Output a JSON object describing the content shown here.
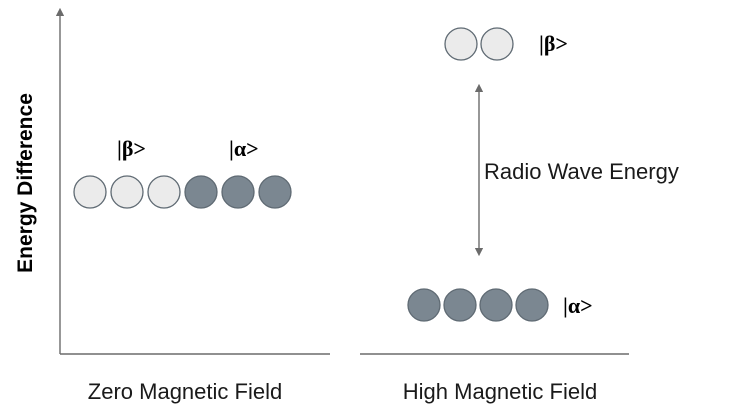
{
  "axis": {
    "ylabel": "Energy Difference"
  },
  "panels": {
    "left": {
      "label": "Zero Magnetic Field",
      "beta_label": "|β>",
      "alpha_label": "|α>",
      "beta_count": 3,
      "alpha_count": 3
    },
    "right": {
      "label": "High Magnetic Field",
      "beta_label": "|β>",
      "alpha_label": "|α>",
      "beta_count": 2,
      "alpha_count": 4,
      "gap_label": "Radio Wave Energy"
    }
  },
  "colors": {
    "beta_fill": "#ebebeb",
    "alpha_fill": "#7b8791",
    "circle_stroke": "#5f6a73",
    "axis_line": "#6b6b6b"
  }
}
